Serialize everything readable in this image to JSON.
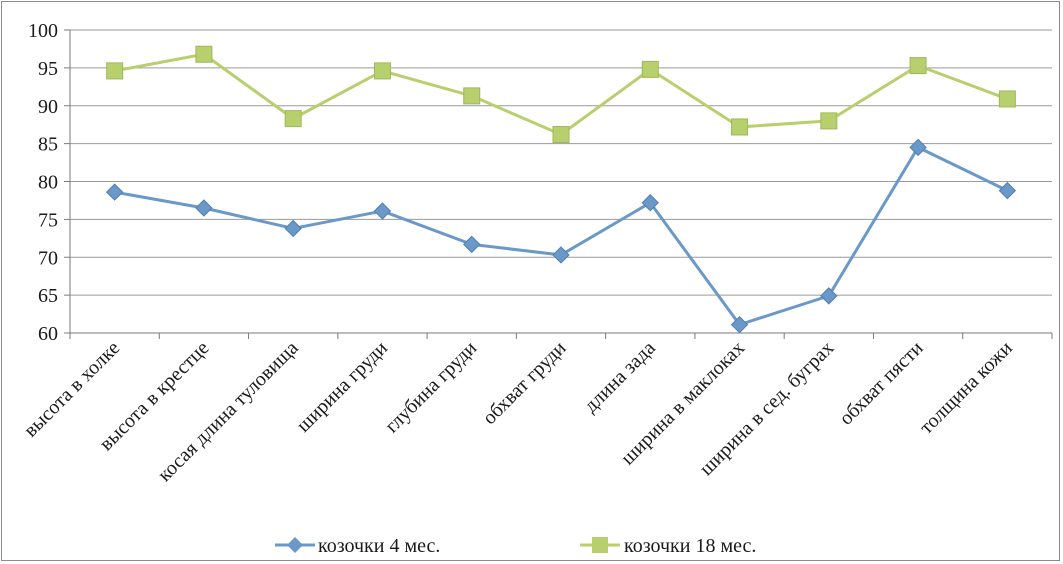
{
  "chart_data": {
    "type": "line",
    "categories": [
      "высота в холке",
      "высота в крестце",
      "косая длина туловища",
      "ширина груди",
      "глубина груди",
      "обхват груди",
      "длина зада",
      "ширина в маклоках",
      "ширина в сед. буграх",
      "обхват пясти",
      "толщина кожи"
    ],
    "series": [
      {
        "name": "козочки 4 мес.",
        "color": "#6a98c8",
        "marker": "diamond",
        "values": [
          78.6,
          76.5,
          73.8,
          76.1,
          71.7,
          70.3,
          77.2,
          61.1,
          64.9,
          84.5,
          78.8
        ]
      },
      {
        "name": "козочки 18 мес.",
        "color": "#b8cf6e",
        "marker": "square",
        "values": [
          94.6,
          96.8,
          88.3,
          94.6,
          91.3,
          86.2,
          94.8,
          87.2,
          88.0,
          95.3,
          90.9
        ]
      }
    ],
    "ylim": [
      60,
      100
    ],
    "yticks": [
      60,
      65,
      70,
      75,
      80,
      85,
      90,
      95,
      100
    ],
    "grid": true,
    "legend_position": "bottom"
  }
}
